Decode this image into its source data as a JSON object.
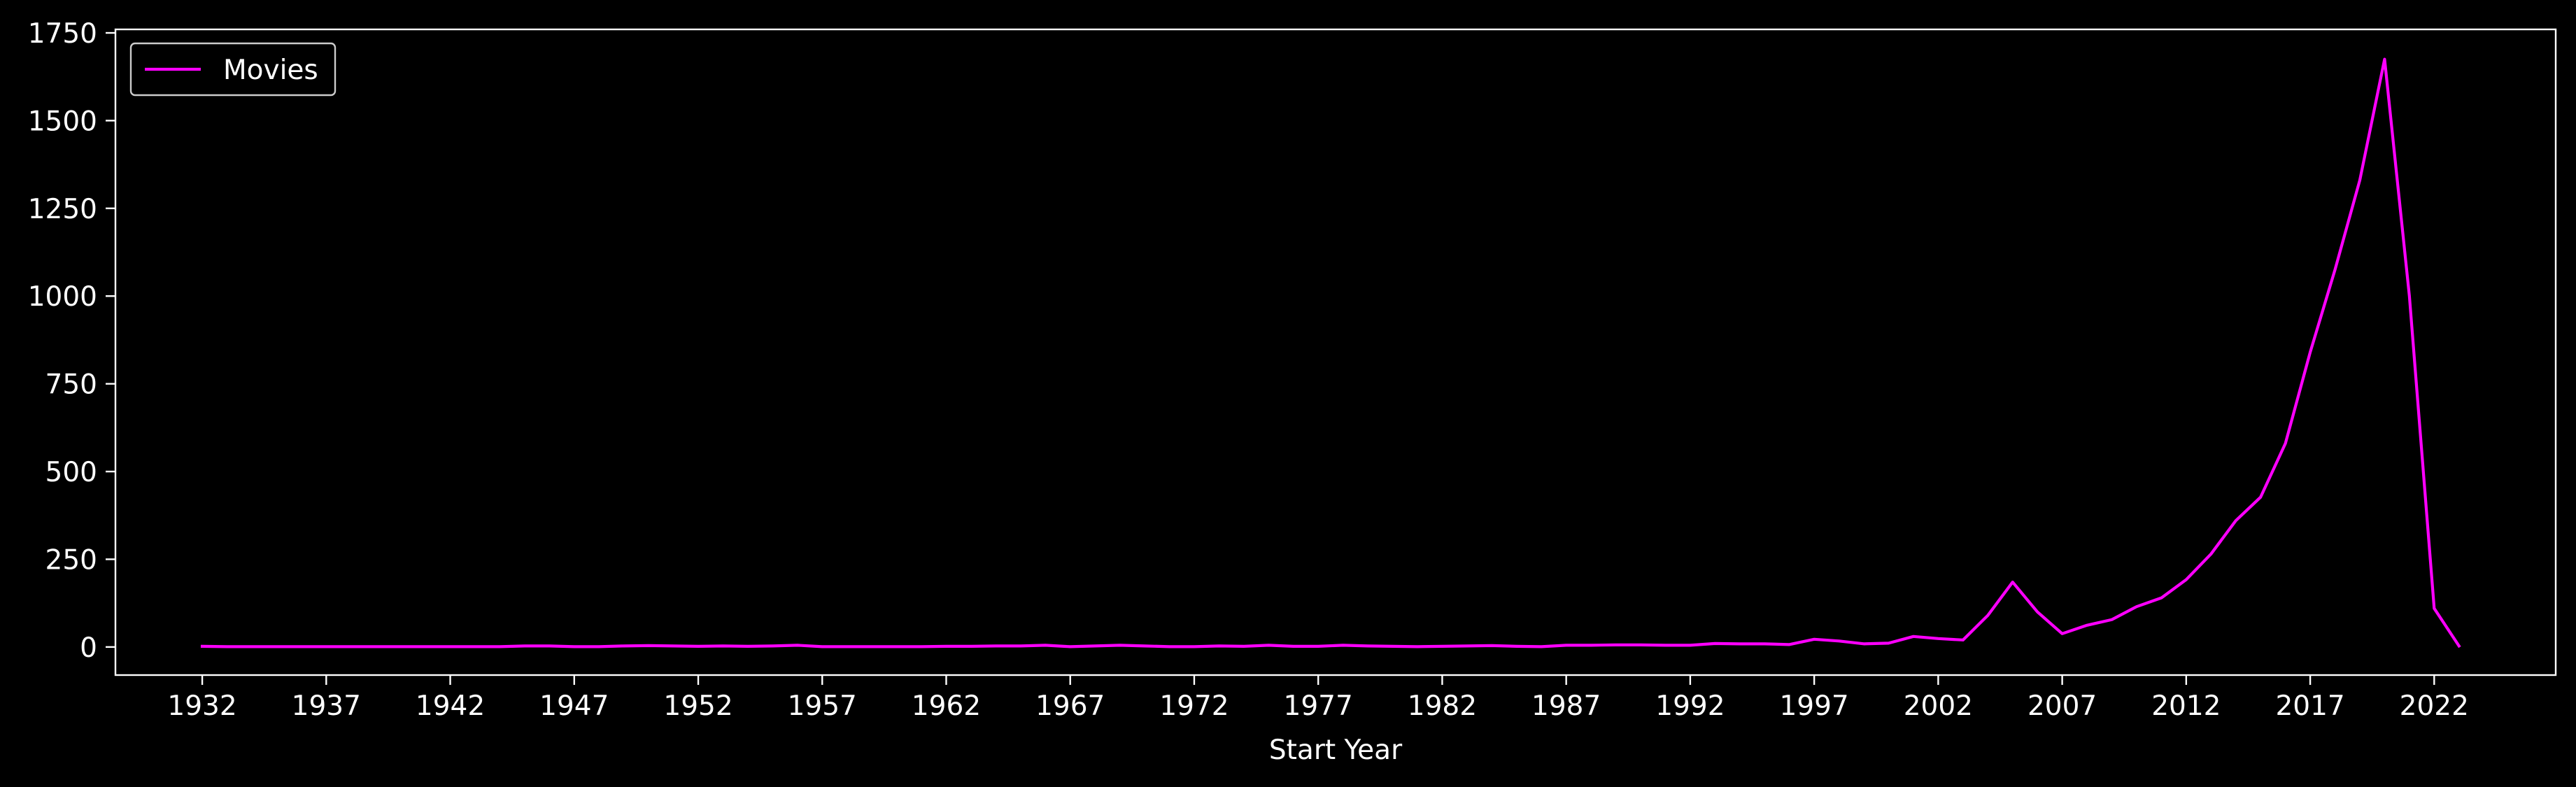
{
  "chart_data": {
    "type": "line",
    "title": "",
    "xlabel": "Start Year",
    "ylabel": "",
    "xlim": [
      1928.5,
      2026.9
    ],
    "ylim": [
      -80,
      1760
    ],
    "x_ticks": [
      1932,
      1937,
      1942,
      1947,
      1952,
      1957,
      1962,
      1967,
      1972,
      1977,
      1982,
      1987,
      1992,
      1997,
      2002,
      2007,
      2012,
      2017,
      2022
    ],
    "y_ticks": [
      0,
      250,
      500,
      750,
      1000,
      1250,
      1500,
      1750
    ],
    "grid": false,
    "legend": {
      "placement": "top-left",
      "frame": true
    },
    "background": "#000000",
    "foreground": "#ffffff",
    "series": [
      {
        "name": "Movies",
        "color": "#ff00ff",
        "points": [
          [
            1932,
            2
          ],
          [
            1933,
            1
          ],
          [
            1934,
            1
          ],
          [
            1935,
            1
          ],
          [
            1936,
            1
          ],
          [
            1937,
            1
          ],
          [
            1938,
            1
          ],
          [
            1939,
            1
          ],
          [
            1940,
            1
          ],
          [
            1941,
            1
          ],
          [
            1942,
            1
          ],
          [
            1943,
            1
          ],
          [
            1944,
            1
          ],
          [
            1945,
            3
          ],
          [
            1946,
            3
          ],
          [
            1947,
            1
          ],
          [
            1948,
            1
          ],
          [
            1949,
            3
          ],
          [
            1950,
            4
          ],
          [
            1951,
            3
          ],
          [
            1952,
            2
          ],
          [
            1953,
            3
          ],
          [
            1954,
            2
          ],
          [
            1955,
            3
          ],
          [
            1956,
            5
          ],
          [
            1957,
            1
          ],
          [
            1958,
            1
          ],
          [
            1959,
            1
          ],
          [
            1960,
            1
          ],
          [
            1961,
            1
          ],
          [
            1962,
            2
          ],
          [
            1963,
            2
          ],
          [
            1964,
            3
          ],
          [
            1965,
            3
          ],
          [
            1966,
            5
          ],
          [
            1967,
            1
          ],
          [
            1968,
            3
          ],
          [
            1969,
            5
          ],
          [
            1970,
            3
          ],
          [
            1971,
            1
          ],
          [
            1972,
            1
          ],
          [
            1973,
            3
          ],
          [
            1974,
            2
          ],
          [
            1975,
            5
          ],
          [
            1976,
            2
          ],
          [
            1977,
            2
          ],
          [
            1978,
            5
          ],
          [
            1979,
            3
          ],
          [
            1980,
            2
          ],
          [
            1981,
            1
          ],
          [
            1982,
            2
          ],
          [
            1983,
            3
          ],
          [
            1984,
            4
          ],
          [
            1985,
            2
          ],
          [
            1986,
            1
          ],
          [
            1987,
            5
          ],
          [
            1988,
            5
          ],
          [
            1989,
            6
          ],
          [
            1990,
            6
          ],
          [
            1991,
            5
          ],
          [
            1992,
            5
          ],
          [
            1993,
            10
          ],
          [
            1994,
            9
          ],
          [
            1995,
            9
          ],
          [
            1996,
            7
          ],
          [
            1997,
            22
          ],
          [
            1998,
            17
          ],
          [
            1999,
            9
          ],
          [
            2000,
            11
          ],
          [
            2001,
            30
          ],
          [
            2002,
            24
          ],
          [
            2003,
            20
          ],
          [
            2004,
            90
          ],
          [
            2005,
            185
          ],
          [
            2006,
            100
          ],
          [
            2007,
            38
          ],
          [
            2008,
            62
          ],
          [
            2009,
            78
          ],
          [
            2010,
            115
          ],
          [
            2011,
            140
          ],
          [
            2012,
            192
          ],
          [
            2013,
            265
          ],
          [
            2014,
            360
          ],
          [
            2015,
            427
          ],
          [
            2016,
            580
          ],
          [
            2017,
            840
          ],
          [
            2018,
            1075
          ],
          [
            2019,
            1330
          ],
          [
            2020,
            1675
          ],
          [
            2021,
            1000
          ],
          [
            2022,
            110
          ],
          [
            2023,
            3
          ]
        ]
      }
    ]
  }
}
